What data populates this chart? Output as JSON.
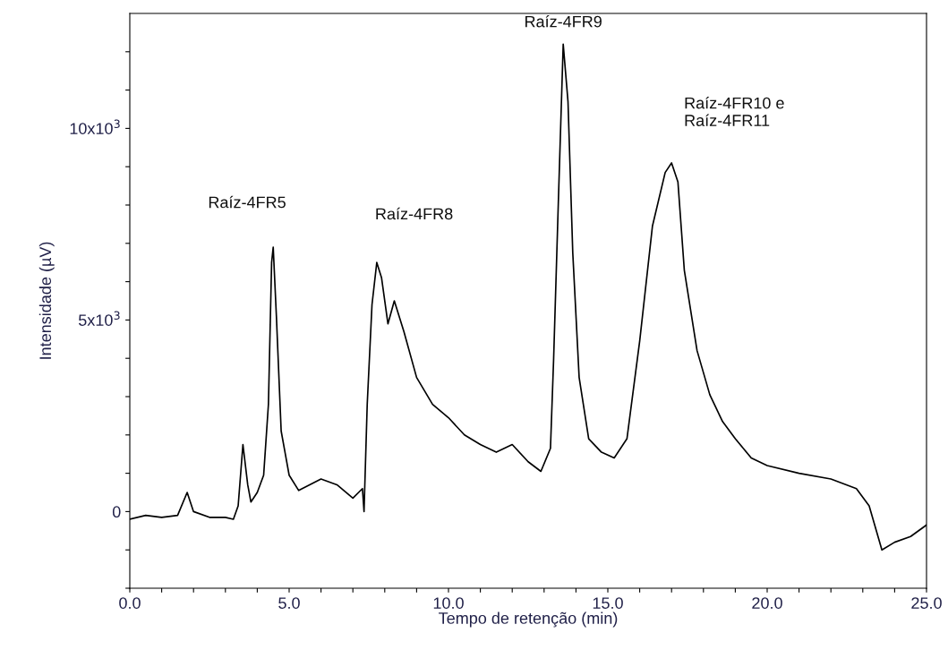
{
  "chart_data": {
    "type": "line",
    "xlabel": "Tempo de retenção (min)",
    "ylabel": "Intensidade (µV)",
    "x": [
      0,
      0.5,
      1,
      1.5,
      1.8,
      2.0,
      2.5,
      3.0,
      3.25,
      3.4,
      3.55,
      3.7,
      3.8,
      4.0,
      4.2,
      4.35,
      4.45,
      4.5,
      4.6,
      4.75,
      5.0,
      5.3,
      6.0,
      6.5,
      7.0,
      7.3,
      7.35,
      7.45,
      7.6,
      7.75,
      7.9,
      8.1,
      8.3,
      8.6,
      9.0,
      9.5,
      10.0,
      10.5,
      11.0,
      11.5,
      12.0,
      12.5,
      12.9,
      13.2,
      13.3,
      13.45,
      13.6,
      13.75,
      13.9,
      14.1,
      14.4,
      14.8,
      15.2,
      15.6,
      16.0,
      16.4,
      16.8,
      17.0,
      17.2,
      17.4,
      17.8,
      18.2,
      18.6,
      19.0,
      19.5,
      20.0,
      21.0,
      22.0,
      22.8,
      23.2,
      23.6,
      24.0,
      24.5,
      25.0
    ],
    "series": [
      {
        "color": "#000000",
        "values": [
          -200,
          -100,
          -150,
          -100,
          500,
          0,
          -150,
          -150,
          -200,
          150,
          1750,
          700,
          250,
          500,
          950,
          2800,
          6500,
          6900,
          5100,
          2100,
          950,
          550,
          850,
          700,
          350,
          600,
          0,
          2800,
          5400,
          6500,
          6100,
          4900,
          5500,
          4700,
          3500,
          2800,
          2450,
          2000,
          1750,
          1550,
          1750,
          1300,
          1050,
          1650,
          4000,
          8150,
          12200,
          10700,
          6750,
          3500,
          1900,
          1550,
          1400,
          1900,
          4450,
          7450,
          8850,
          9100,
          8600,
          6300,
          4200,
          3050,
          2350,
          1900,
          1400,
          1200,
          1000,
          850,
          600,
          150,
          -1000,
          -800,
          -650,
          -350
        ]
      }
    ],
    "xlim": [
      0,
      25
    ],
    "xticks": [
      {
        "value": 0,
        "label": "0.0"
      },
      {
        "value": 1,
        "label": null
      },
      {
        "value": 2,
        "label": null
      },
      {
        "value": 3,
        "label": null
      },
      {
        "value": 4,
        "label": null
      },
      {
        "value": 5,
        "label": "5.0"
      },
      {
        "value": 6,
        "label": null
      },
      {
        "value": 7,
        "label": null
      },
      {
        "value": 8,
        "label": null
      },
      {
        "value": 9,
        "label": null
      },
      {
        "value": 10,
        "label": "10.0"
      },
      {
        "value": 11,
        "label": null
      },
      {
        "value": 12,
        "label": null
      },
      {
        "value": 13,
        "label": null
      },
      {
        "value": 14,
        "label": null
      },
      {
        "value": 15,
        "label": "15.0"
      },
      {
        "value": 16,
        "label": null
      },
      {
        "value": 17,
        "label": null
      },
      {
        "value": 18,
        "label": null
      },
      {
        "value": 19,
        "label": null
      },
      {
        "value": 20,
        "label": "20.0"
      },
      {
        "value": 21,
        "label": null
      },
      {
        "value": 22,
        "label": null
      },
      {
        "value": 23,
        "label": null
      },
      {
        "value": 24,
        "label": null
      },
      {
        "value": 25,
        "label": "25.0"
      }
    ],
    "ylim": [
      -2000,
      13000
    ],
    "yticks": [
      {
        "value": -2000,
        "label": null
      },
      {
        "value": -1000,
        "label": null
      },
      0,
      {
        "value": 1000,
        "label": null
      },
      {
        "value": 2000,
        "label": null
      },
      {
        "value": 3000,
        "label": null
      },
      {
        "value": 4000,
        "label": null
      },
      {
        "value": 5000,
        "label": "5x10$^{3}$"
      },
      {
        "value": 6000,
        "label": null
      },
      {
        "value": 7000,
        "label": null
      },
      {
        "value": 8000,
        "label": null
      },
      {
        "value": 9000,
        "label": null
      },
      {
        "value": 10000,
        "label": "10x10$^{3}$"
      },
      {
        "value": 11000,
        "label": null
      },
      {
        "value": 12000,
        "label": null
      }
    ],
    "grid": false,
    "legend": false,
    "marker": "none",
    "line_style": "solid",
    "annotations": [
      {
        "text": "Raíz-4FR5",
        "x": 4.5,
        "y": 6900
      },
      {
        "text": "Raíz-4FR8",
        "x": 7.75,
        "y": 6500
      },
      {
        "text": "Raíz-4FR9",
        "x": 13.6,
        "y": 12200
      },
      {
        "text": "Raíz-4FR10 e\nRaíz-4FR11",
        "x": 17.0,
        "y": 9100
      }
    ]
  }
}
